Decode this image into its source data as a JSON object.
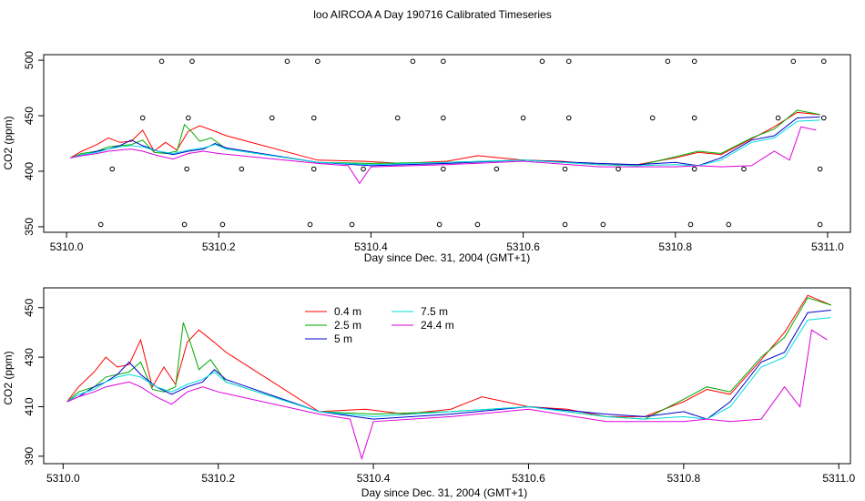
{
  "title": "loo AIRCOA A  Day 190716  Calibrated Timeseries",
  "chart_data": [
    {
      "type": "line",
      "xlabel": "Day since Dec. 31, 2004 (GMT+1)",
      "ylabel": "CO2 (ppm)",
      "xlim": [
        5309.97,
        5311.03
      ],
      "ylim": [
        345,
        505
      ],
      "x_ticks": [
        5310.0,
        5310.2,
        5310.4,
        5310.6,
        5310.8,
        5311.0
      ],
      "x_tick_labels": [
        "5310.0",
        "5310.2",
        "5310.4",
        "5310.6",
        "5310.8",
        "5311.0"
      ],
      "y_ticks": [
        350,
        400,
        450,
        500
      ],
      "y_tick_labels": [
        "350",
        "400",
        "450",
        "500"
      ],
      "legend": "none",
      "series": [
        {
          "color": "#ff0000",
          "x": [
            5310.005,
            5310.02,
            5310.04,
            5310.055,
            5310.07,
            5310.085,
            5310.1,
            5310.115,
            5310.13,
            5310.145,
            5310.16,
            5310.175,
            5310.195,
            5310.21,
            5310.33,
            5310.39,
            5310.44,
            5310.5,
            5310.54,
            5310.6,
            5310.65,
            5310.7,
            5310.75,
            5310.8,
            5310.83,
            5310.86,
            5310.9,
            5310.93,
            5310.96,
            5310.99
          ],
          "y": [
            412,
            418,
            424,
            430,
            426,
            427,
            437,
            418,
            426,
            419,
            436,
            441,
            436,
            432,
            410,
            409,
            407,
            409,
            414,
            410,
            409,
            406,
            406,
            412,
            417,
            415,
            429,
            440,
            453,
            451
          ]
        },
        {
          "color": "#00aa00",
          "x": [
            5310.005,
            5310.02,
            5310.04,
            5310.055,
            5310.07,
            5310.085,
            5310.1,
            5310.115,
            5310.13,
            5310.145,
            5310.155,
            5310.165,
            5310.175,
            5310.19,
            5310.21,
            5310.33,
            5310.4,
            5310.5,
            5310.6,
            5310.7,
            5310.75,
            5310.8,
            5310.83,
            5310.86,
            5310.9,
            5310.93,
            5310.96,
            5310.99
          ],
          "y": [
            412,
            416,
            418,
            422,
            423,
            424,
            428,
            417,
            416,
            418,
            442,
            435,
            427,
            430,
            420,
            408,
            407,
            408,
            410,
            406,
            405,
            413,
            418,
            416,
            430,
            438,
            455,
            451
          ]
        },
        {
          "color": "#0000cc",
          "x": [
            5310.005,
            5310.02,
            5310.04,
            5310.055,
            5310.07,
            5310.085,
            5310.1,
            5310.12,
            5310.14,
            5310.16,
            5310.18,
            5310.195,
            5310.21,
            5310.33,
            5310.4,
            5310.5,
            5310.6,
            5310.7,
            5310.75,
            5310.8,
            5310.83,
            5310.86,
            5310.9,
            5310.93,
            5310.96,
            5310.99
          ],
          "y": [
            412,
            414,
            418,
            420,
            423,
            428,
            423,
            418,
            415,
            418,
            420,
            425,
            421,
            408,
            405,
            407,
            410,
            407,
            406,
            408,
            405,
            412,
            428,
            432,
            448,
            449
          ]
        },
        {
          "color": "#00dddd",
          "x": [
            5310.005,
            5310.02,
            5310.04,
            5310.055,
            5310.07,
            5310.085,
            5310.1,
            5310.12,
            5310.14,
            5310.16,
            5310.18,
            5310.195,
            5310.21,
            5310.33,
            5310.4,
            5310.5,
            5310.6,
            5310.7,
            5310.75,
            5310.8,
            5310.83,
            5310.86,
            5310.9,
            5310.93,
            5310.96,
            5310.99
          ],
          "y": [
            412,
            415,
            417,
            420,
            422,
            423,
            422,
            418,
            416,
            419,
            421,
            424,
            420,
            408,
            406,
            408,
            410,
            406,
            405,
            406,
            405,
            410,
            426,
            430,
            445,
            446
          ]
        },
        {
          "color": "#dd00dd",
          "x": [
            5310.005,
            5310.02,
            5310.04,
            5310.055,
            5310.07,
            5310.085,
            5310.1,
            5310.12,
            5310.14,
            5310.16,
            5310.18,
            5310.2,
            5310.33,
            5310.37,
            5310.385,
            5310.4,
            5310.5,
            5310.6,
            5310.7,
            5310.75,
            5310.8,
            5310.83,
            5310.86,
            5310.9,
            5310.93,
            5310.95,
            5310.965,
            5310.985
          ],
          "y": [
            412,
            414,
            416,
            418,
            419,
            420,
            418,
            414,
            411,
            416,
            418,
            416,
            407,
            405,
            389,
            404,
            406,
            409,
            404,
            404,
            404,
            405,
            404,
            405,
            418,
            410,
            440,
            437
          ]
        },
        {
          "type": "scatter",
          "color": "#000000",
          "x": [
            5310.045,
            5310.06,
            5310.1,
            5310.125,
            5310.155,
            5310.158,
            5310.16,
            5310.165,
            5310.205,
            5310.23,
            5310.27,
            5310.29,
            5310.32,
            5310.325,
            5310.325,
            5310.33,
            5310.375,
            5310.39,
            5310.435,
            5310.455,
            5310.49,
            5310.495,
            5310.495,
            5310.495,
            5310.54,
            5310.565,
            5310.6,
            5310.625,
            5310.655,
            5310.655,
            5310.66,
            5310.66,
            5310.705,
            5310.725,
            5310.77,
            5310.79,
            5310.82,
            5310.825,
            5310.825,
            5310.825,
            5310.87,
            5310.89,
            5310.935,
            5310.955,
            5310.99,
            5310.99,
            5310.995,
            5310.995
          ],
          "y": [
            352,
            402,
            448,
            499,
            352,
            402,
            448,
            499,
            352,
            402,
            448,
            499,
            352,
            402,
            448,
            499,
            352,
            402,
            448,
            499,
            352,
            402,
            448,
            499,
            352,
            402,
            448,
            499,
            352,
            402,
            448,
            499,
            352,
            402,
            448,
            499,
            352,
            402,
            448,
            499,
            352,
            402,
            448,
            499,
            352,
            402,
            448,
            499
          ]
        }
      ]
    },
    {
      "type": "line",
      "xlabel": "Day since Dec. 31, 2004 (GMT+1)",
      "ylabel": "CO2 (ppm)",
      "xlim": [
        5309.975,
        5311.015
      ],
      "ylim": [
        387,
        458
      ],
      "x_ticks": [
        5310.0,
        5310.2,
        5310.4,
        5310.6,
        5310.8,
        5311.0
      ],
      "x_tick_labels": [
        "5310.0",
        "5310.2",
        "5310.4",
        "5310.6",
        "5310.8",
        "5311.0"
      ],
      "y_ticks": [
        390,
        410,
        430,
        450
      ],
      "y_tick_labels": [
        "390",
        "410",
        "430",
        "450"
      ],
      "legend": "top",
      "series": [
        {
          "name": "0.4 m",
          "color": "#ff0000",
          "x": [
            5310.005,
            5310.02,
            5310.04,
            5310.055,
            5310.07,
            5310.085,
            5310.1,
            5310.115,
            5310.13,
            5310.145,
            5310.16,
            5310.175,
            5310.195,
            5310.21,
            5310.33,
            5310.39,
            5310.44,
            5310.5,
            5310.54,
            5310.6,
            5310.65,
            5310.7,
            5310.75,
            5310.8,
            5310.83,
            5310.86,
            5310.9,
            5310.93,
            5310.96,
            5310.99
          ],
          "y": [
            412,
            418,
            424,
            430,
            426,
            427,
            437,
            418,
            426,
            419,
            436,
            441,
            436,
            432,
            408,
            409,
            407,
            409,
            414,
            410,
            409,
            406,
            406,
            412,
            417,
            415,
            429,
            440,
            455,
            451
          ]
        },
        {
          "name": "2.5 m",
          "color": "#00aa00",
          "x": [
            5310.005,
            5310.02,
            5310.04,
            5310.055,
            5310.07,
            5310.085,
            5310.1,
            5310.115,
            5310.13,
            5310.145,
            5310.155,
            5310.165,
            5310.175,
            5310.19,
            5310.21,
            5310.33,
            5310.4,
            5310.5,
            5310.6,
            5310.7,
            5310.75,
            5310.8,
            5310.83,
            5310.86,
            5310.9,
            5310.93,
            5310.96,
            5310.99
          ],
          "y": [
            412,
            416,
            418,
            422,
            423,
            424,
            428,
            417,
            416,
            418,
            444,
            435,
            425,
            429,
            420,
            408,
            407,
            408,
            410,
            406,
            405,
            413,
            418,
            416,
            430,
            438,
            454,
            451
          ]
        },
        {
          "name": "5 m",
          "color": "#0000cc",
          "x": [
            5310.005,
            5310.02,
            5310.04,
            5310.055,
            5310.07,
            5310.085,
            5310.1,
            5310.12,
            5310.14,
            5310.16,
            5310.18,
            5310.195,
            5310.21,
            5310.33,
            5310.4,
            5310.5,
            5310.6,
            5310.7,
            5310.75,
            5310.8,
            5310.83,
            5310.86,
            5310.9,
            5310.93,
            5310.96,
            5310.99
          ],
          "y": [
            412,
            414,
            418,
            420,
            423,
            428,
            423,
            418,
            415,
            418,
            420,
            425,
            421,
            408,
            405,
            407,
            410,
            407,
            406,
            408,
            405,
            412,
            428,
            432,
            448,
            449
          ]
        },
        {
          "name": "7.5 m",
          "color": "#00dddd",
          "x": [
            5310.005,
            5310.02,
            5310.04,
            5310.055,
            5310.07,
            5310.085,
            5310.1,
            5310.12,
            5310.14,
            5310.16,
            5310.18,
            5310.195,
            5310.21,
            5310.33,
            5310.4,
            5310.5,
            5310.6,
            5310.7,
            5310.75,
            5310.8,
            5310.83,
            5310.86,
            5310.9,
            5310.93,
            5310.96,
            5310.99
          ],
          "y": [
            412,
            415,
            417,
            420,
            422,
            423,
            422,
            418,
            416,
            419,
            421,
            424,
            420,
            408,
            406,
            408,
            410,
            406,
            405,
            406,
            405,
            410,
            426,
            430,
            445,
            446
          ]
        },
        {
          "name": "24.4 m",
          "color": "#dd00dd",
          "x": [
            5310.005,
            5310.02,
            5310.04,
            5310.055,
            5310.07,
            5310.085,
            5310.1,
            5310.12,
            5310.14,
            5310.16,
            5310.18,
            5310.2,
            5310.33,
            5310.37,
            5310.385,
            5310.4,
            5310.5,
            5310.6,
            5310.7,
            5310.75,
            5310.8,
            5310.83,
            5310.86,
            5310.9,
            5310.93,
            5310.95,
            5310.965,
            5310.985
          ],
          "y": [
            412,
            414,
            416,
            418,
            419,
            420,
            418,
            414,
            411,
            416,
            418,
            416,
            407,
            405,
            389,
            404,
            406,
            409,
            404,
            404,
            404,
            405,
            404,
            405,
            418,
            410,
            441,
            437
          ]
        }
      ]
    }
  ]
}
